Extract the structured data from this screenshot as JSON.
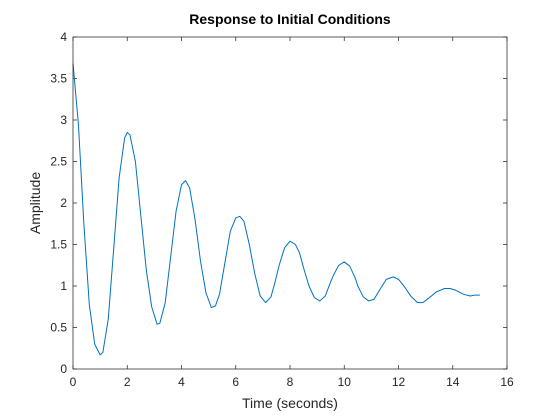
{
  "chart_data": {
    "type": "line",
    "title": "Response to Initial Conditions",
    "xlabel": "Time (seconds)",
    "ylabel": "Amplitude",
    "xlim": [
      0,
      16
    ],
    "ylim": [
      0,
      4
    ],
    "xticks": [
      0,
      2,
      4,
      6,
      8,
      10,
      12,
      14,
      16
    ],
    "yticks": [
      0,
      0.5,
      1,
      1.5,
      2,
      2.5,
      3,
      3.5,
      4
    ],
    "xtick_labels": [
      "0",
      "2",
      "4",
      "6",
      "8",
      "10",
      "12",
      "14",
      "16"
    ],
    "ytick_labels": [
      "0",
      "0.5",
      "1",
      "1.5",
      "2",
      "2.5",
      "3",
      "3.5",
      "4"
    ],
    "grid": false,
    "series": [
      {
        "color": "#0072BD",
        "x": [
          0,
          0.2,
          0.4,
          0.6,
          0.8,
          1.0,
          1.1,
          1.3,
          1.5,
          1.7,
          1.9,
          2.0,
          2.1,
          2.3,
          2.5,
          2.7,
          2.9,
          3.1,
          3.2,
          3.4,
          3.6,
          3.8,
          4.0,
          4.15,
          4.3,
          4.5,
          4.7,
          4.9,
          5.1,
          5.25,
          5.4,
          5.6,
          5.8,
          6.0,
          6.15,
          6.3,
          6.5,
          6.7,
          6.9,
          7.1,
          7.3,
          7.45,
          7.6,
          7.8,
          8.0,
          8.2,
          8.35,
          8.5,
          8.7,
          8.9,
          9.1,
          9.3,
          9.5,
          9.6,
          9.8,
          10.0,
          10.2,
          10.4,
          10.5,
          10.7,
          10.9,
          11.1,
          11.3,
          11.55,
          11.8,
          12.0,
          12.2,
          12.45,
          12.7,
          12.9,
          13.1,
          13.4,
          13.7,
          13.9,
          14.1,
          14.4,
          14.65,
          14.8,
          15.0
        ],
        "y": [
          3.68,
          2.95,
          1.75,
          0.78,
          0.3,
          0.17,
          0.2,
          0.6,
          1.45,
          2.3,
          2.78,
          2.85,
          2.82,
          2.5,
          1.85,
          1.2,
          0.75,
          0.54,
          0.55,
          0.8,
          1.35,
          1.9,
          2.22,
          2.27,
          2.18,
          1.8,
          1.3,
          0.92,
          0.74,
          0.76,
          0.9,
          1.28,
          1.66,
          1.82,
          1.84,
          1.78,
          1.5,
          1.15,
          0.88,
          0.8,
          0.87,
          1.05,
          1.25,
          1.46,
          1.54,
          1.5,
          1.4,
          1.22,
          1.0,
          0.86,
          0.82,
          0.88,
          1.05,
          1.13,
          1.25,
          1.29,
          1.24,
          1.1,
          1.0,
          0.87,
          0.82,
          0.84,
          0.95,
          1.08,
          1.11,
          1.08,
          1.0,
          0.88,
          0.8,
          0.8,
          0.85,
          0.93,
          0.97,
          0.97,
          0.95,
          0.9,
          0.88,
          0.89,
          0.89
        ]
      }
    ]
  }
}
